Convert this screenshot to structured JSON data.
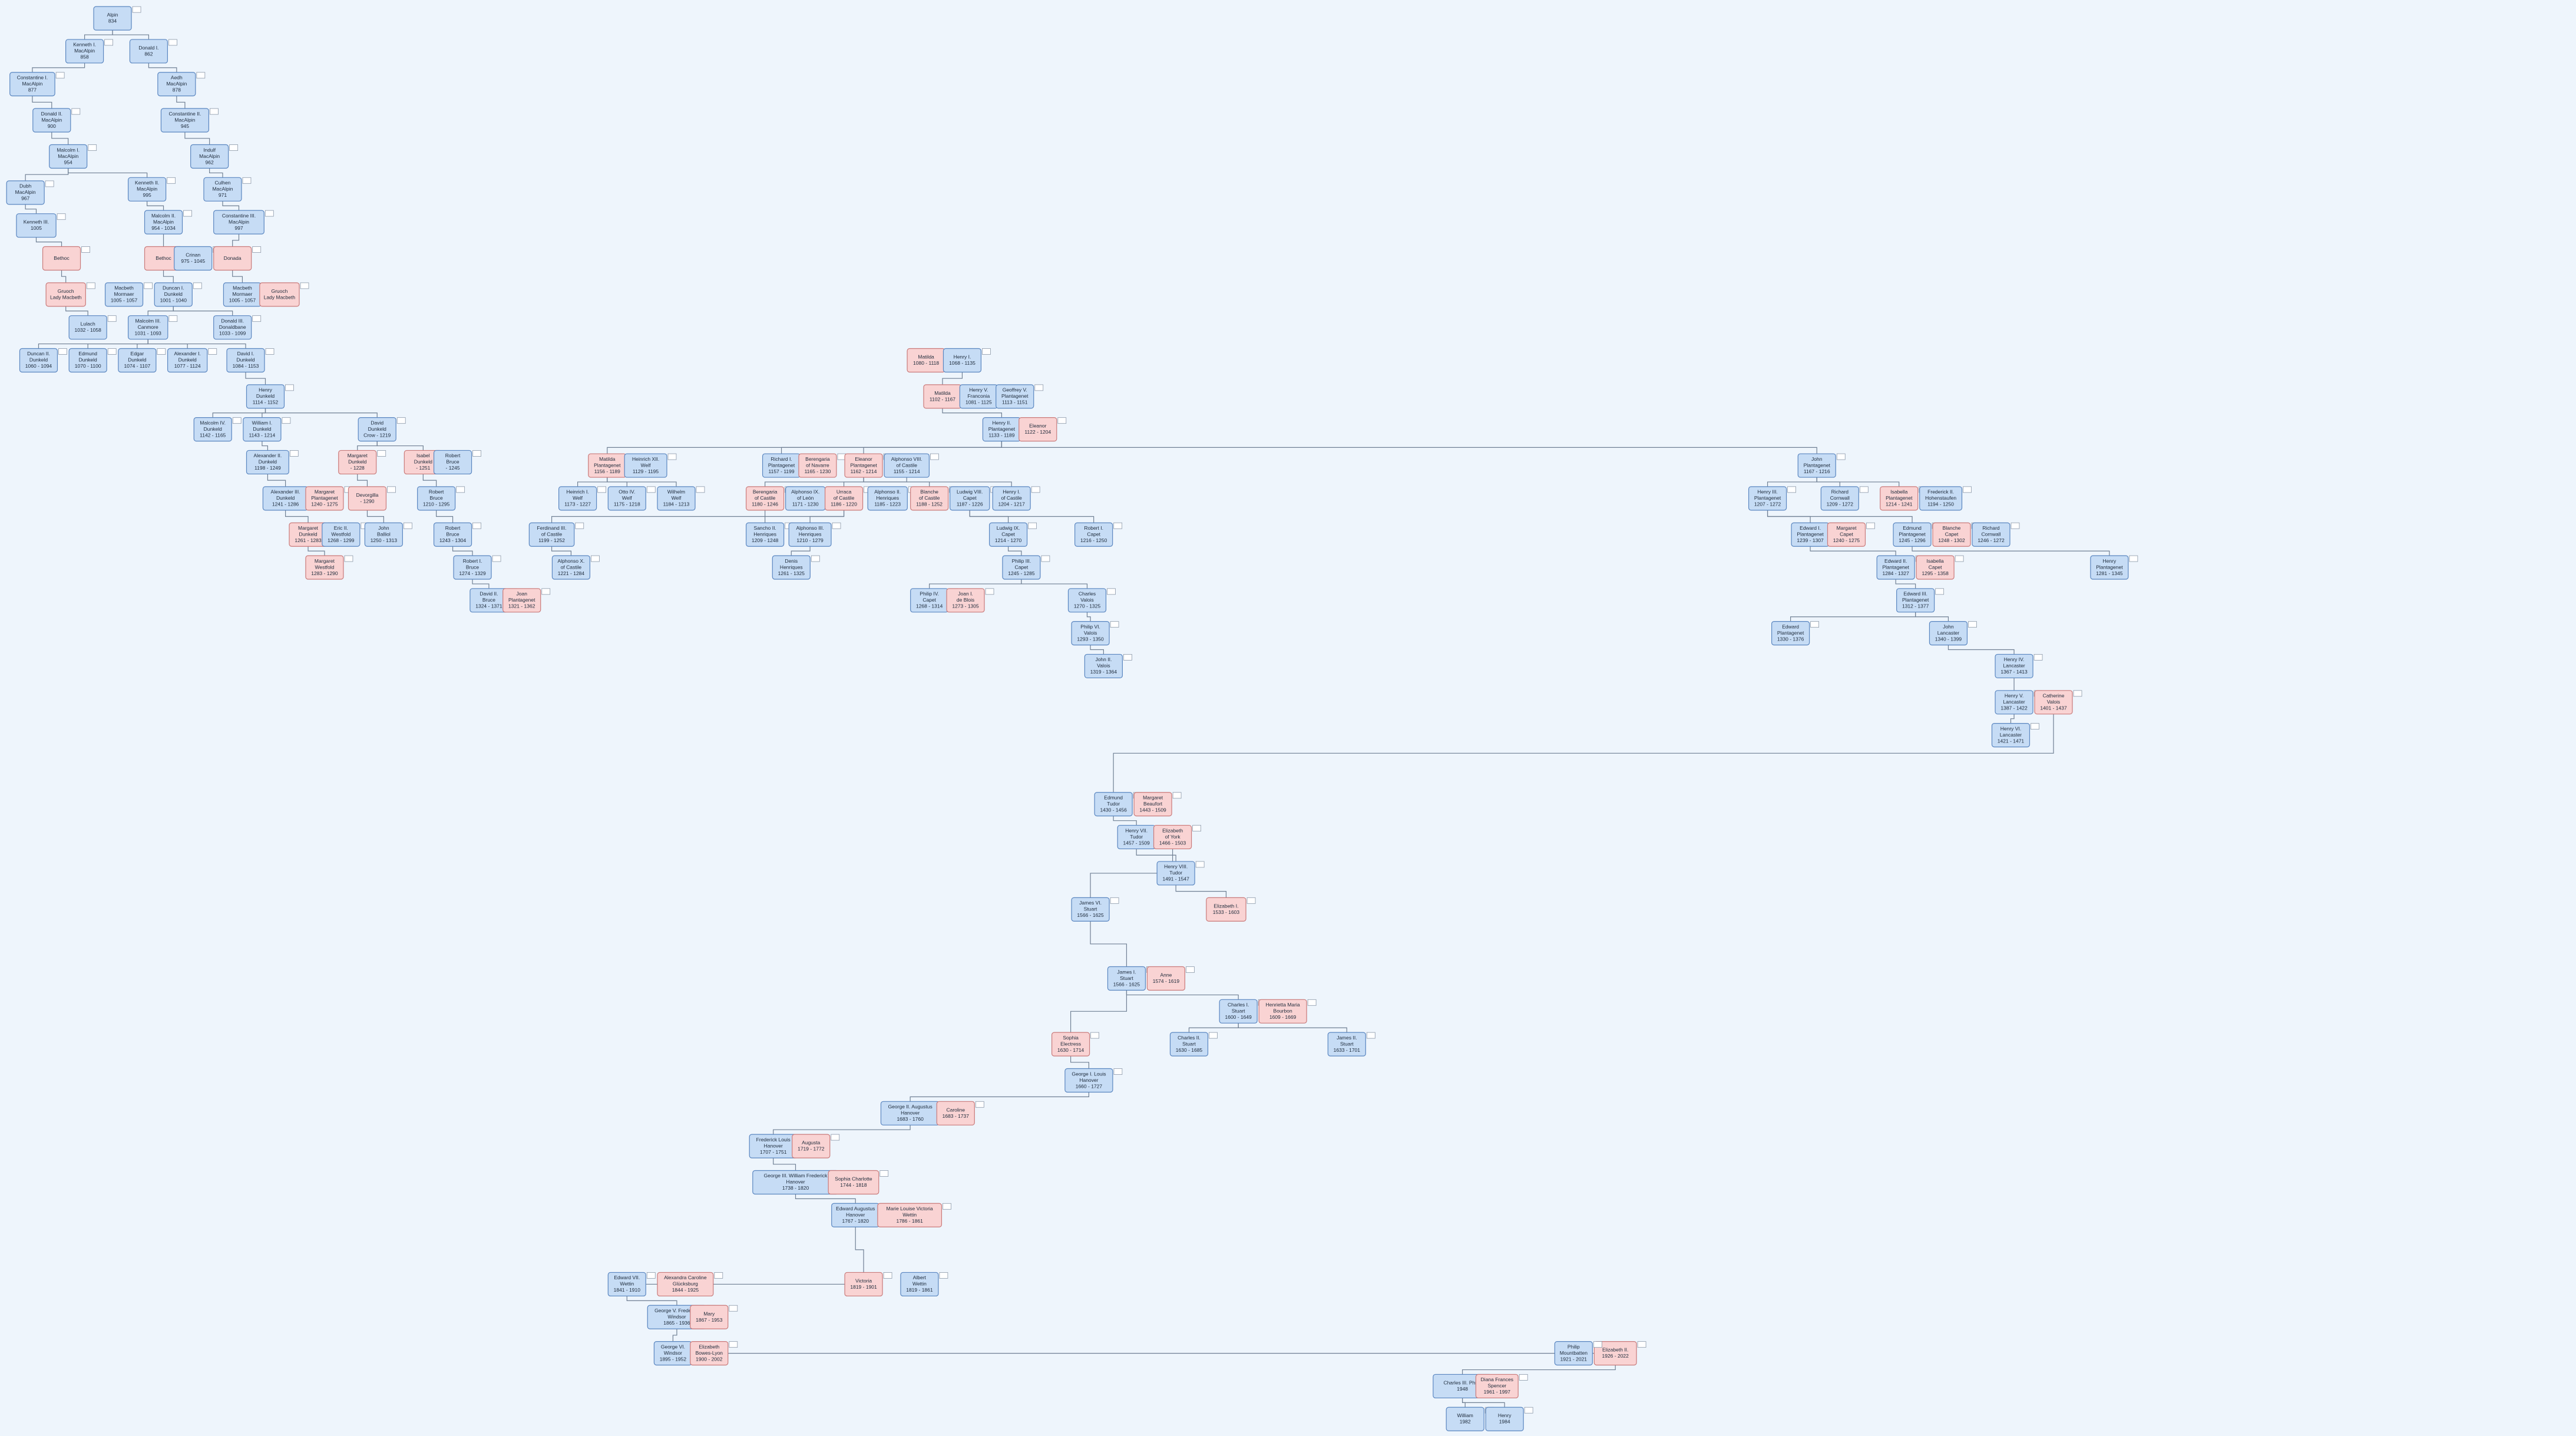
{
  "nodes": [
    {
      "lines": [
        "Alpin",
        "834"
      ],
      "color": "#c6dcf5"
    },
    {
      "lines": [
        "Kenneth I.",
        "MacAlpin",
        "858"
      ],
      "color": "#c6dcf5"
    },
    {
      "lines": [
        "Donald I.",
        "862"
      ],
      "color": "#c6dcf5"
    },
    {
      "lines": [
        "Constantine I.",
        "MacAlpin",
        "877"
      ],
      "color": "#c6dcf5"
    },
    {
      "lines": [
        "Aedh",
        "MacAlpin",
        "878"
      ],
      "color": "#c6dcf5"
    },
    {
      "lines": [
        "Donald II.",
        "MacAlpin",
        "900"
      ],
      "color": "#c6dcf5"
    },
    {
      "lines": [
        "Constantine II.",
        "MacAlpin",
        "945"
      ],
      "color": "#c6dcf5"
    },
    {
      "lines": [
        "Malcolm I.",
        "MacAlpin",
        "954"
      ],
      "color": "#c6dcf5"
    },
    {
      "lines": [
        "Indulf",
        "MacAlpin",
        "962"
      ],
      "color": "#c6dcf5"
    },
    {
      "lines": [
        "Dubh",
        "MacAlpin",
        "967"
      ],
      "color": "#c6dcf5"
    },
    {
      "lines": [
        "Kenneth II.",
        "MacAlpin",
        "995"
      ],
      "color": "#c6dcf5"
    },
    {
      "lines": [
        "Culhen",
        "MacAlpin",
        "971"
      ],
      "color": "#c6dcf5"
    },
    {
      "lines": [
        "Kenneth III.",
        "1005"
      ],
      "color": "#c6dcf5"
    },
    {
      "lines": [
        "Malcolm II.",
        "MacAlpin",
        "954 - 1034"
      ],
      "color": "#c6dcf5"
    },
    {
      "lines": [
        "Constantine III.",
        "MacAlpin",
        "997"
      ],
      "color": "#c6dcf5"
    },
    {
      "lines": [
        "Bethoc"
      ],
      "color": "#f9d3d3"
    },
    {
      "lines": [
        "Bethoc"
      ],
      "color": "#f9d3d3"
    },
    {
      "lines": [
        "Crinan",
        "975 - 1045"
      ],
      "color": "#c6dcf5"
    },
    {
      "lines": [
        "Donada"
      ],
      "color": "#f9d3d3"
    },
    {
      "lines": [
        "Gruoch",
        "Lady Macbeth"
      ],
      "color": "#f9d3d3"
    },
    {
      "lines": [
        "Macbeth",
        "Mormaer",
        "1005 - 1057"
      ],
      "color": "#c6dcf5"
    },
    {
      "lines": [
        "Duncan I.",
        "Dunkeld",
        "1001 - 1040"
      ],
      "color": "#c6dcf5"
    },
    {
      "lines": [
        "Macbeth",
        "Mormaer",
        "1005 - 1057"
      ],
      "color": "#c6dcf5"
    },
    {
      "lines": [
        "Gruoch",
        "Lady Macbeth"
      ],
      "color": "#f9d3d3"
    },
    {
      "lines": [
        "Lulach",
        "1032 - 1058"
      ],
      "color": "#c6dcf5"
    },
    {
      "lines": [
        "Malcolm III.",
        "Canmore",
        "1031 - 1093"
      ],
      "color": "#c6dcf5"
    },
    {
      "lines": [
        "Donald III.",
        "Donaldbane",
        "1033 - 1099"
      ],
      "color": "#c6dcf5"
    },
    {
      "lines": [
        "Duncan II.",
        "Dunkeld",
        "1060 - 1094"
      ],
      "color": "#c6dcf5"
    },
    {
      "lines": [
        "Edmund",
        "Dunkeld",
        "1070 - 1100"
      ],
      "color": "#c6dcf5"
    },
    {
      "lines": [
        "Edgar",
        "Dunkeld",
        "1074 - 1107"
      ],
      "color": "#c6dcf5"
    },
    {
      "lines": [
        "Alexander I.",
        "Dunkeld",
        "1077 - 1124"
      ],
      "color": "#c6dcf5"
    },
    {
      "lines": [
        "David I.",
        "Dunkeld",
        "1084 - 1153"
      ],
      "color": "#c6dcf5"
    },
    {
      "lines": [
        "Henry",
        "Dunkeld",
        "1114 - 1152"
      ],
      "color": "#c6dcf5"
    },
    {
      "lines": [
        "Malcolm IV.",
        "Dunkeld",
        "1142 - 1165"
      ],
      "color": "#c6dcf5"
    },
    {
      "lines": [
        "William I.",
        "Dunkeld",
        "1143 - 1214"
      ],
      "color": "#c6dcf5"
    },
    {
      "lines": [
        "David",
        "Dunkeld",
        "Crow - 1219"
      ],
      "color": "#c6dcf5"
    },
    {
      "lines": [
        "Alexander II.",
        "Dunkeld",
        "1198 - 1249"
      ],
      "color": "#c6dcf5"
    },
    {
      "lines": [
        "Margaret",
        "Dunkeld",
        "- 1228"
      ],
      "color": "#f9d3d3"
    },
    {
      "lines": [
        "Isabel",
        "Dunkeld",
        "- 1251"
      ],
      "color": "#f9d3d3"
    },
    {
      "lines": [
        "Robert",
        "Bruce",
        "- 1245"
      ],
      "color": "#c6dcf5"
    },
    {
      "lines": [
        "Alexander III.",
        "Dunkeld",
        "1241 - 1286"
      ],
      "color": "#c6dcf5"
    },
    {
      "lines": [
        "Margaret",
        "Plantagenet",
        "1240 - 1275"
      ],
      "color": "#f9d3d3"
    },
    {
      "lines": [
        "Devorgilla",
        "- 1290"
      ],
      "color": "#f9d3d3"
    },
    {
      "lines": [
        "Robert",
        "Bruce",
        "1210 - 1295"
      ],
      "color": "#c6dcf5"
    },
    {
      "lines": [
        "Margaret",
        "Dunkeld",
        "1261 - 1283"
      ],
      "color": "#f9d3d3"
    },
    {
      "lines": [
        "Eric II.",
        "Westfold",
        "1268 - 1299"
      ],
      "color": "#c6dcf5"
    },
    {
      "lines": [
        "John",
        "Balliol",
        "1250 - 1313"
      ],
      "color": "#c6dcf5"
    },
    {
      "lines": [
        "Robert",
        "Bruce",
        "1243 - 1304"
      ],
      "color": "#c6dcf5"
    },
    {
      "lines": [
        "Margaret",
        "Westfold",
        "1283 - 1290"
      ],
      "color": "#f9d3d3"
    },
    {
      "lines": [
        "Robert I.",
        "Bruce",
        "1274 - 1329"
      ],
      "color": "#c6dcf5"
    },
    {
      "lines": [
        "David II.",
        "Bruce",
        "1324 - 1371"
      ],
      "color": "#c6dcf5"
    },
    {
      "lines": [
        "Joan",
        "Plantagenet",
        "1321 - 1362"
      ],
      "color": "#f9d3d3"
    },
    {
      "lines": [
        "Matilda",
        "1080 - 1118"
      ],
      "color": "#f9d3d3"
    },
    {
      "lines": [
        "Henry I.",
        "1068 - 1135"
      ],
      "color": "#c6dcf5"
    },
    {
      "lines": [
        "Matilda",
        "1102 - 1167"
      ],
      "color": "#f9d3d3"
    },
    {
      "lines": [
        "Henry V.",
        "Franconia",
        "1081 - 1125"
      ],
      "color": "#c6dcf5"
    },
    {
      "lines": [
        "Geoffrey V.",
        "Plantagenet",
        "1113 - 1151"
      ],
      "color": "#c6dcf5"
    },
    {
      "lines": [
        "Henry II.",
        "Plantagenet",
        "1133 - 1189"
      ],
      "color": "#c6dcf5"
    },
    {
      "lines": [
        "Eleanor",
        "1122 - 1204"
      ],
      "color": "#f9d3d3"
    },
    {
      "lines": [
        "Matilda",
        "Plantagenet",
        "1156 - 1189"
      ],
      "color": "#f9d3d3"
    },
    {
      "lines": [
        "Heinrich XII.",
        "Welf",
        "1129 - 1195"
      ],
      "color": "#c6dcf5"
    },
    {
      "lines": [
        "Richard I.",
        "Plantagenet",
        "1157 - 1199"
      ],
      "color": "#c6dcf5"
    },
    {
      "lines": [
        "Berengaria",
        "of Navarre",
        "1165 - 1230"
      ],
      "color": "#f9d3d3"
    },
    {
      "lines": [
        "Eleanor",
        "Plantagenet",
        "1162 - 1214"
      ],
      "color": "#f9d3d3"
    },
    {
      "lines": [
        "Alphonso VIII.",
        "of Castile",
        "1155 - 1214"
      ],
      "color": "#c6dcf5"
    },
    {
      "lines": [
        "John",
        "Plantagenet",
        "1167 - 1216"
      ],
      "color": "#c6dcf5"
    },
    {
      "lines": [
        "Heinrich I.",
        "Welf",
        "1173 - 1227"
      ],
      "color": "#c6dcf5"
    },
    {
      "lines": [
        "Otto IV.",
        "Welf",
        "1175 - 1218"
      ],
      "color": "#c6dcf5"
    },
    {
      "lines": [
        "Wilhelm",
        "Welf",
        "1184 - 1213"
      ],
      "color": "#c6dcf5"
    },
    {
      "lines": [
        "Berengaria",
        "of Castile",
        "1180 - 1246"
      ],
      "color": "#f9d3d3"
    },
    {
      "lines": [
        "Alphonso IX.",
        "of León",
        "1171 - 1230"
      ],
      "color": "#c6dcf5"
    },
    {
      "lines": [
        "Urraca",
        "of Castile",
        "1186 - 1220"
      ],
      "color": "#f9d3d3"
    },
    {
      "lines": [
        "Alphonso II.",
        "Henriques",
        "1185 - 1223"
      ],
      "color": "#c6dcf5"
    },
    {
      "lines": [
        "Blanche",
        "of Castile",
        "1188 - 1252"
      ],
      "color": "#f9d3d3"
    },
    {
      "lines": [
        "Ludwig VIII.",
        "Capet",
        "1187 - 1226"
      ],
      "color": "#c6dcf5"
    },
    {
      "lines": [
        "Henry I.",
        "of Castile",
        "1204 - 1217"
      ],
      "color": "#c6dcf5"
    },
    {
      "lines": [
        "Henry III.",
        "Plantagenet",
        "1207 - 1272"
      ],
      "color": "#c6dcf5"
    },
    {
      "lines": [
        "Richard",
        "Cornwall",
        "1209 - 1272"
      ],
      "color": "#c6dcf5"
    },
    {
      "lines": [
        "Isabella",
        "Plantagenet",
        "1214 - 1241"
      ],
      "color": "#f9d3d3"
    },
    {
      "lines": [
        "Frederick II.",
        "Hohenstaufen",
        "1194 - 1250"
      ],
      "color": "#c6dcf5"
    },
    {
      "lines": [
        "Ferdinand III.",
        "of Castile",
        "1199 - 1252"
      ],
      "color": "#c6dcf5"
    },
    {
      "lines": [
        "Sancho II.",
        "Henriques",
        "1209 - 1248"
      ],
      "color": "#c6dcf5"
    },
    {
      "lines": [
        "Alphonso III.",
        "Henriques",
        "1210 - 1279"
      ],
      "color": "#c6dcf5"
    },
    {
      "lines": [
        "Ludwig IX.",
        "Capet",
        "1214 - 1270"
      ],
      "color": "#c6dcf5"
    },
    {
      "lines": [
        "Robert I.",
        "Capet",
        "1216 - 1250"
      ],
      "color": "#c6dcf5"
    },
    {
      "lines": [
        "Edward I.",
        "Plantagenet",
        "1239 - 1307"
      ],
      "color": "#c6dcf5"
    },
    {
      "lines": [
        "Margaret",
        "Capet",
        "1240 - 1275"
      ],
      "color": "#f9d3d3"
    },
    {
      "lines": [
        "Edmund",
        "Plantagenet",
        "1245 - 1296"
      ],
      "color": "#c6dcf5"
    },
    {
      "lines": [
        "Blanche",
        "Capet",
        "1248 - 1302"
      ],
      "color": "#f9d3d3"
    },
    {
      "lines": [
        "Richard",
        "Cornwall",
        "1246 - 1272"
      ],
      "color": "#c6dcf5"
    },
    {
      "lines": [
        "Alphonso X.",
        "of Castile",
        "1221 - 1284"
      ],
      "color": "#c6dcf5"
    },
    {
      "lines": [
        "Denis",
        "Henriques",
        "1261 - 1325"
      ],
      "color": "#c6dcf5"
    },
    {
      "lines": [
        "Philip III.",
        "Capet",
        "1245 - 1285"
      ],
      "color": "#c6dcf5"
    },
    {
      "lines": [
        "Edward II.",
        "Plantagenet",
        "1284 - 1327"
      ],
      "color": "#c6dcf5"
    },
    {
      "lines": [
        "Isabella",
        "Capet",
        "1295 - 1358"
      ],
      "color": "#f9d3d3"
    },
    {
      "lines": [
        "Henry",
        "Plantagenet",
        "1281 - 1345"
      ],
      "color": "#c6dcf5"
    },
    {
      "lines": [
        "Edward III.",
        "Plantagenet",
        "1312 - 1377"
      ],
      "color": "#c6dcf5"
    },
    {
      "lines": [
        "Philip IV.",
        "Capet",
        "1268 - 1314"
      ],
      "color": "#c6dcf5"
    },
    {
      "lines": [
        "Joan I.",
        "de Blois",
        "1273 - 1305"
      ],
      "color": "#f9d3d3"
    },
    {
      "lines": [
        "Charles",
        "Valois",
        "1270 - 1325"
      ],
      "color": "#c6dcf5"
    },
    {
      "lines": [
        "John",
        "Lancaster",
        "1340 - 1399"
      ],
      "color": "#c6dcf5"
    },
    {
      "lines": [
        "Edward",
        "Plantagenet",
        "1330 - 1376"
      ],
      "color": "#c6dcf5"
    },
    {
      "lines": [
        "Philip VI.",
        "Valois",
        "1293 - 1350"
      ],
      "color": "#c6dcf5"
    },
    {
      "lines": [
        "Henry IV.",
        "Lancaster",
        "1367 - 1413"
      ],
      "color": "#c6dcf5"
    },
    {
      "lines": [
        "John II.",
        "Valois",
        "1319 - 1364"
      ],
      "color": "#c6dcf5"
    },
    {
      "lines": [
        "Henry V.",
        "Lancaster",
        "1387 - 1422"
      ],
      "color": "#c6dcf5"
    },
    {
      "lines": [
        "Catherine",
        "Valois",
        "1401 - 1437"
      ],
      "color": "#f9d3d3"
    },
    {
      "lines": [
        "Henry VI.",
        "Lancaster",
        "1421 - 1471"
      ],
      "color": "#c6dcf5"
    },
    {
      "lines": [
        "Edmund",
        "Tudor",
        "1430 - 1456"
      ],
      "color": "#c6dcf5"
    },
    {
      "lines": [
        "Margaret",
        "Beaufort",
        "1443 - 1509"
      ],
      "color": "#f9d3d3"
    },
    {
      "lines": [
        "Henry VII.",
        "Tudor",
        "1457 - 1509"
      ],
      "color": "#c6dcf5"
    },
    {
      "lines": [
        "Elizabeth",
        "of York",
        "1466 - 1503"
      ],
      "color": "#f9d3d3"
    },
    {
      "lines": [
        "Henry VIII.",
        "Tudor",
        "1491 - 1547"
      ],
      "color": "#c6dcf5"
    },
    {
      "lines": [
        "Elizabeth I.",
        "1533 - 1603"
      ],
      "color": "#f9d3d3"
    },
    {
      "lines": [
        "James VI.",
        "Stuart",
        "1566 - 1625"
      ],
      "color": "#c6dcf5"
    },
    {
      "lines": [
        "James I.",
        "Stuart",
        "1566 - 1625"
      ],
      "color": "#c6dcf5"
    },
    {
      "lines": [
        "Anne",
        "1574 - 1619"
      ],
      "color": "#f9d3d3"
    },
    {
      "lines": [
        "Charles I.",
        "Stuart",
        "1600 - 1649"
      ],
      "color": "#c6dcf5"
    },
    {
      "lines": [
        "Henrietta Maria",
        "Bourbon",
        "1609 - 1669"
      ],
      "color": "#f9d3d3"
    },
    {
      "lines": [
        "Charles II.",
        "Stuart",
        "1630 - 1685"
      ],
      "color": "#c6dcf5"
    },
    {
      "lines": [
        "James II.",
        "Stuart",
        "1633 - 1701"
      ],
      "color": "#c6dcf5"
    },
    {
      "lines": [
        "Sophia",
        "Electress",
        "1630 - 1714"
      ],
      "color": "#f9d3d3"
    },
    {
      "lines": [
        "George I. Louis",
        "Hanover",
        "1660 - 1727"
      ],
      "color": "#c6dcf5"
    },
    {
      "lines": [
        "George II. Augustus",
        "Hanover",
        "1683 - 1760"
      ],
      "color": "#c6dcf5"
    },
    {
      "lines": [
        "Caroline",
        "1683 - 1737"
      ],
      "color": "#f9d3d3"
    },
    {
      "lines": [
        "Frederick Louis",
        "Hanover",
        "1707 - 1751"
      ],
      "color": "#c6dcf5"
    },
    {
      "lines": [
        "Augusta",
        "1719 - 1772"
      ],
      "color": "#f9d3d3"
    },
    {
      "lines": [
        "George III. William Frederick",
        "Hanover",
        "1738 - 1820"
      ],
      "color": "#c6dcf5"
    },
    {
      "lines": [
        "Sophia Charlotte",
        "1744 - 1818"
      ],
      "color": "#f9d3d3"
    },
    {
      "lines": [
        "Edward Augustus",
        "Hanover",
        "1767 - 1820"
      ],
      "color": "#c6dcf5"
    },
    {
      "lines": [
        "Marie Louise Victoria",
        "Wettin",
        "1786 - 1861"
      ],
      "color": "#f9d3d3"
    },
    {
      "lines": [
        "Victoria",
        "1819 - 1901"
      ],
      "color": "#f9d3d3"
    },
    {
      "lines": [
        "Albert",
        "Wettin",
        "1819 - 1861"
      ],
      "color": "#c6dcf5"
    },
    {
      "lines": [
        "Edward VII.",
        "Wettin",
        "1841 - 1910"
      ],
      "color": "#c6dcf5"
    },
    {
      "lines": [
        "Alexandra Caroline",
        "Glücksburg",
        "1844 - 1925"
      ],
      "color": "#f9d3d3"
    },
    {
      "lines": [
        "George V. Frederick",
        "Windsor",
        "1865 - 1936"
      ],
      "color": "#c6dcf5"
    },
    {
      "lines": [
        "Mary",
        "1867 - 1953"
      ],
      "color": "#f9d3d3"
    },
    {
      "lines": [
        "George VI.",
        "Windsor",
        "1895 - 1952"
      ],
      "color": "#c6dcf5"
    },
    {
      "lines": [
        "Elizabeth",
        "Bowes-Lyon",
        "1900 - 2002"
      ],
      "color": "#f9d3d3"
    },
    {
      "lines": [
        "Elizabeth II.",
        "1926 - 2022"
      ],
      "color": "#f9d3d3"
    },
    {
      "lines": [
        "Philip",
        "Mountbatten",
        "1921 - 2021"
      ],
      "color": "#c6dcf5"
    },
    {
      "lines": [
        "Charles III. Philip",
        "1948"
      ],
      "color": "#c6dcf5"
    },
    {
      "lines": [
        "Diana Frances",
        "Spencer",
        "1961 - 1997"
      ],
      "color": "#f9d3d3"
    },
    {
      "lines": [
        "William",
        "1982"
      ],
      "color": "#c6dcf5"
    },
    {
      "lines": [
        "Henry",
        "1984"
      ],
      "color": "#c6dcf5"
    }
  ]
}
